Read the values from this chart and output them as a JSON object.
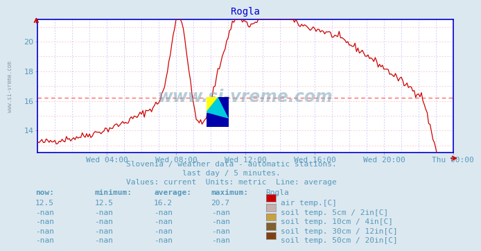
{
  "title": "Rogla",
  "bg_color": "#dce8f0",
  "plot_bg_color": "#ffffff",
  "line_color": "#cc0000",
  "avg_line_color": "#ff6666",
  "avg_line_value": 16.2,
  "ylim": [
    12.5,
    21.5
  ],
  "yticks": [
    14,
    16,
    18,
    20
  ],
  "xtick_pos": [
    48,
    96,
    144,
    192,
    240,
    288
  ],
  "xlabel_ticks": [
    "Wed 04:00",
    "Wed 08:00",
    "Wed 12:00",
    "Wed 16:00",
    "Wed 20:00",
    "Thu 00:00"
  ],
  "subtitle_line1": "Slovenia / weather data - automatic stations.",
  "subtitle_line2": "last day / 5 minutes.",
  "subtitle_line3": "Values: current  Units: metric  Line: average",
  "text_color": "#5599bb",
  "watermark": "www.si-vreme.com",
  "table_headers": [
    "now:",
    "minimum:",
    "average:",
    "maximum:",
    "Rogla"
  ],
  "table_rows": [
    {
      "now": "12.5",
      "min": "12.5",
      "avg": "16.2",
      "max": "20.7",
      "color": "#cc0000",
      "label": "air temp.[C]"
    },
    {
      "now": "-nan",
      "min": "-nan",
      "avg": "-nan",
      "max": "-nan",
      "color": "#c8b0b0",
      "label": "soil temp. 5cm / 2in[C]"
    },
    {
      "now": "-nan",
      "min": "-nan",
      "avg": "-nan",
      "max": "-nan",
      "color": "#c8a040",
      "label": "soil temp. 10cm / 4in[C]"
    },
    {
      "now": "-nan",
      "min": "-nan",
      "avg": "-nan",
      "max": "-nan",
      "color": "#806030",
      "label": "soil temp. 30cm / 12in[C]"
    },
    {
      "now": "-nan",
      "min": "-nan",
      "avg": "-nan",
      "max": "-nan",
      "color": "#804010",
      "label": "soil temp. 50cm / 20in[C]"
    }
  ],
  "grid_h_color": "#ffcccc",
  "grid_v_color": "#ccccff",
  "spine_color": "#0000cc",
  "title_color": "#0000cc",
  "n_points": 288
}
